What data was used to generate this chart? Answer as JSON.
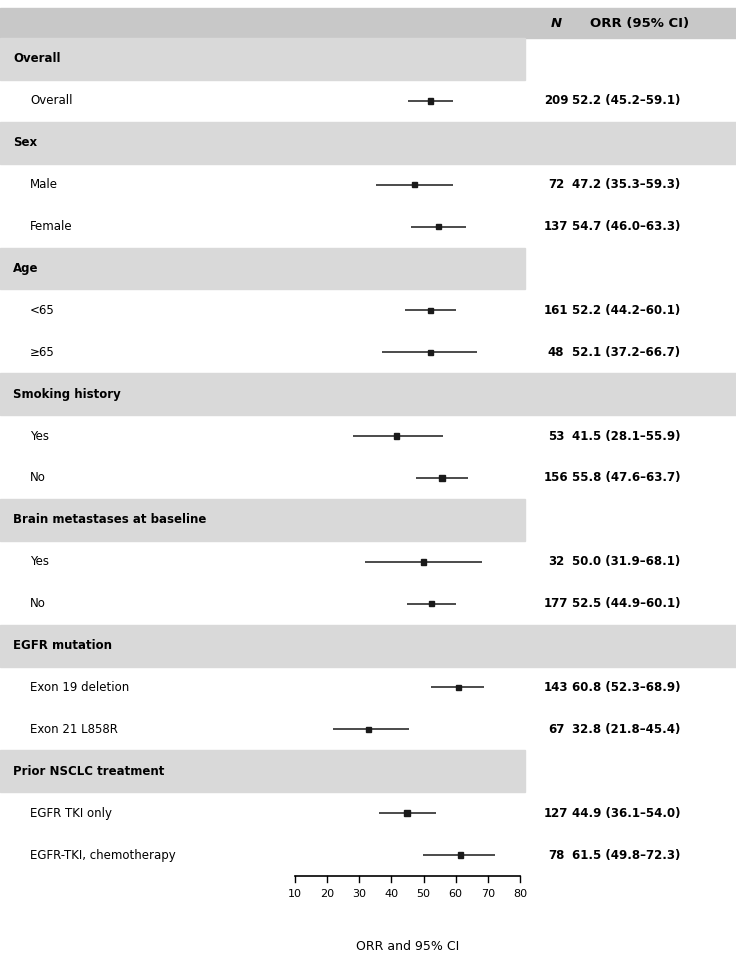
{
  "header_n": "N",
  "header_orr": "ORR (95% CI)",
  "xlabel": "ORR and 95% CI",
  "xmin": 10,
  "xmax": 80,
  "xticks": [
    10,
    20,
    30,
    40,
    50,
    60,
    70,
    80
  ],
  "rows": [
    {
      "label": "Overall",
      "is_header": true,
      "n": null,
      "orr": null,
      "ci_lo": null,
      "ci_hi": null,
      "orr_str": null,
      "band_full": false
    },
    {
      "label": "Overall",
      "is_header": false,
      "n": 209,
      "orr": 52.2,
      "ci_lo": 45.2,
      "ci_hi": 59.1,
      "orr_str": "52.2 (45.2–59.1)",
      "band_full": false
    },
    {
      "label": "Sex",
      "is_header": true,
      "n": null,
      "orr": null,
      "ci_lo": null,
      "ci_hi": null,
      "orr_str": null,
      "band_full": true
    },
    {
      "label": "Male",
      "is_header": false,
      "n": 72,
      "orr": 47.2,
      "ci_lo": 35.3,
      "ci_hi": 59.3,
      "orr_str": "47.2 (35.3–59.3)",
      "band_full": false
    },
    {
      "label": "Female",
      "is_header": false,
      "n": 137,
      "orr": 54.7,
      "ci_lo": 46.0,
      "ci_hi": 63.3,
      "orr_str": "54.7 (46.0–63.3)",
      "band_full": false
    },
    {
      "label": "Age",
      "is_header": true,
      "n": null,
      "orr": null,
      "ci_lo": null,
      "ci_hi": null,
      "orr_str": null,
      "band_full": false
    },
    {
      "label": "<65",
      "is_header": false,
      "n": 161,
      "orr": 52.2,
      "ci_lo": 44.2,
      "ci_hi": 60.1,
      "orr_str": "52.2 (44.2–60.1)",
      "band_full": false
    },
    {
      "label": "≥65",
      "is_header": false,
      "n": 48,
      "orr": 52.1,
      "ci_lo": 37.2,
      "ci_hi": 66.7,
      "orr_str": "52.1 (37.2–66.7)",
      "band_full": false
    },
    {
      "label": "Smoking history",
      "is_header": true,
      "n": null,
      "orr": null,
      "ci_lo": null,
      "ci_hi": null,
      "orr_str": null,
      "band_full": true
    },
    {
      "label": "Yes",
      "is_header": false,
      "n": 53,
      "orr": 41.5,
      "ci_lo": 28.1,
      "ci_hi": 55.9,
      "orr_str": "41.5 (28.1–55.9)",
      "band_full": false
    },
    {
      "label": "No",
      "is_header": false,
      "n": 156,
      "orr": 55.8,
      "ci_lo": 47.6,
      "ci_hi": 63.7,
      "orr_str": "55.8 (47.6–63.7)",
      "band_full": false
    },
    {
      "label": "Brain metastases at baseline",
      "is_header": true,
      "n": null,
      "orr": null,
      "ci_lo": null,
      "ci_hi": null,
      "orr_str": null,
      "band_full": false
    },
    {
      "label": "Yes",
      "is_header": false,
      "n": 32,
      "orr": 50.0,
      "ci_lo": 31.9,
      "ci_hi": 68.1,
      "orr_str": "50.0 (31.9–68.1)",
      "band_full": false
    },
    {
      "label": "No",
      "is_header": false,
      "n": 177,
      "orr": 52.5,
      "ci_lo": 44.9,
      "ci_hi": 60.1,
      "orr_str": "52.5 (44.9–60.1)",
      "band_full": false
    },
    {
      "label": "EGFR mutation",
      "is_header": true,
      "n": null,
      "orr": null,
      "ci_lo": null,
      "ci_hi": null,
      "orr_str": null,
      "band_full": true
    },
    {
      "label": "Exon 19 deletion",
      "is_header": false,
      "n": 143,
      "orr": 60.8,
      "ci_lo": 52.3,
      "ci_hi": 68.9,
      "orr_str": "60.8 (52.3–68.9)",
      "band_full": false
    },
    {
      "label": "Exon 21 L858R",
      "is_header": false,
      "n": 67,
      "orr": 32.8,
      "ci_lo": 21.8,
      "ci_hi": 45.4,
      "orr_str": "32.8 (21.8–45.4)",
      "band_full": false
    },
    {
      "label": "Prior NSCLC treatment",
      "is_header": true,
      "n": null,
      "orr": null,
      "ci_lo": null,
      "ci_hi": null,
      "orr_str": null,
      "band_full": false
    },
    {
      "label": "EGFR TKI only",
      "is_header": false,
      "n": 127,
      "orr": 44.9,
      "ci_lo": 36.1,
      "ci_hi": 54.0,
      "orr_str": "44.9 (36.1–54.0)",
      "band_full": false
    },
    {
      "label": "EGFR-TKI, chemotherapy",
      "is_header": false,
      "n": 78,
      "orr": 61.5,
      "ci_lo": 49.8,
      "ci_hi": 72.3,
      "orr_str": "61.5 (49.8–72.3)",
      "band_full": false
    }
  ],
  "band_color": "#d9d9d9",
  "top_header_bg": "#c8c8c8",
  "marker_color": "#1a1a1a",
  "line_color": "#1a1a1a",
  "text_color": "#000000",
  "fig_bg_color": "#ffffff",
  "fontsize_label": 8.5,
  "fontsize_data": 8.5,
  "fontsize_axis": 8.0,
  "fontsize_xlabel": 9.0
}
